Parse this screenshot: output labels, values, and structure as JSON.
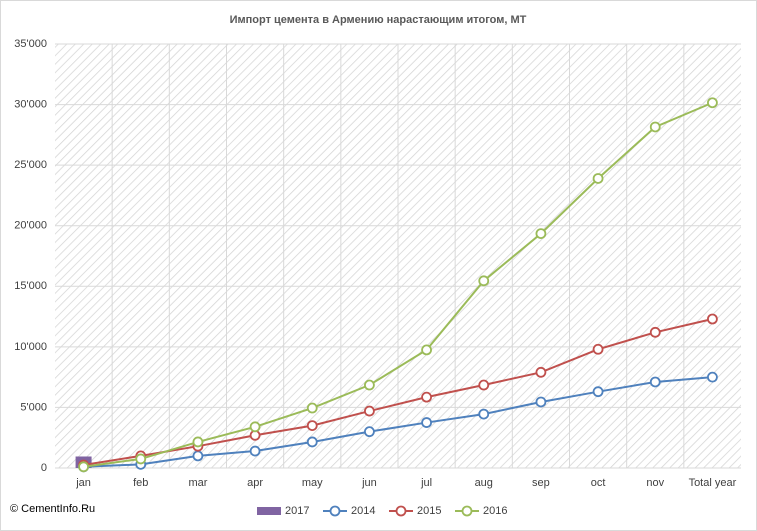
{
  "chart_data": {
    "type": "line",
    "title": "Импорт цемента в Армению нарастающим  итогом, МТ",
    "source": "© CementInfo.Ru",
    "categories": [
      "jan",
      "feb",
      "mar",
      "apr",
      "may",
      "jun",
      "jul",
      "aug",
      "sep",
      "oct",
      "nov",
      "Total year"
    ],
    "series": [
      {
        "name": "2017",
        "type": "bar",
        "color": "#8064a2",
        "values": [
          950,
          null,
          null,
          null,
          null,
          null,
          null,
          null,
          null,
          null,
          null,
          null
        ]
      },
      {
        "name": "2014",
        "color": "#4f81bd",
        "values": [
          100,
          300,
          1000,
          1400,
          2150,
          3000,
          3750,
          4450,
          5450,
          6300,
          7100,
          7500
        ]
      },
      {
        "name": "2015",
        "color": "#c0504d",
        "values": [
          250,
          1000,
          1800,
          2700,
          3500,
          4700,
          5850,
          6850,
          7900,
          9800,
          11200,
          12300
        ]
      },
      {
        "name": "2016",
        "color": "#9bbb59",
        "values": [
          100,
          750,
          2150,
          3400,
          4950,
          6850,
          9750,
          15450,
          19350,
          23900,
          28150,
          30150
        ]
      }
    ],
    "ylim": [
      0,
      35000
    ],
    "yticks": [
      0,
      {
        "value": 5000,
        "label": "5'000"
      },
      {
        "value": 10000,
        "label": "10'000"
      },
      {
        "value": 15000,
        "label": "15'000"
      },
      {
        "value": 20000,
        "label": "20'000"
      },
      {
        "value": 25000,
        "label": "25'000"
      },
      {
        "value": 30000,
        "label": "30'000"
      },
      {
        "value": 35000,
        "label": "35'000"
      }
    ],
    "grid": true,
    "legend": "bottom"
  }
}
